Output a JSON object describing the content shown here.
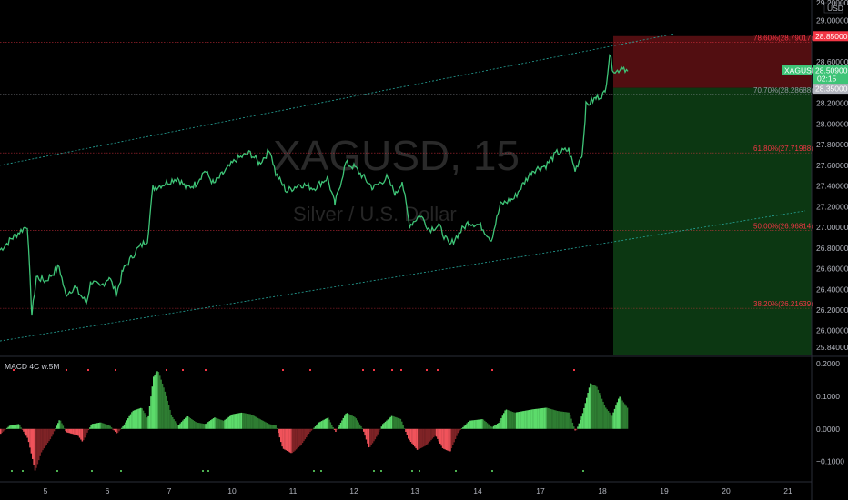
{
  "chart_data": [
    {
      "type": "candlestick",
      "symbol": "XAGUSD",
      "watermark": {
        "symbol": "XAGUSD, 15",
        "description": "Silver / U.S. Dollar"
      },
      "currency": "USD",
      "x_tick_labels": [
        "5",
        "6",
        "7",
        "10",
        "11",
        "12",
        "13",
        "14",
        "17",
        "18",
        "19",
        "20",
        "21"
      ],
      "ylim": [
        25.76,
        29.2
      ],
      "y_tick_values": [
        25.84,
        26.0,
        26.2,
        26.4,
        26.6,
        26.8,
        27.0,
        27.2,
        27.4,
        27.6,
        27.8,
        28.0,
        28.2,
        28.4,
        28.6,
        29.0
      ],
      "y_tick_labels": [
        "25.84000",
        "26.00000",
        "26.20000",
        "26.40000",
        "26.60000",
        "26.80000",
        "27.00000",
        "27.20000",
        "27.40000",
        "27.60000",
        "27.80000",
        "28.00000",
        "28.20000",
        "28.40000",
        "28.60000",
        "29.00000"
      ],
      "price_path": [
        [
          0,
          26.78
        ],
        [
          14,
          26.9
        ],
        [
          30,
          27.02
        ],
        [
          35,
          26.15
        ],
        [
          40,
          26.52
        ],
        [
          50,
          26.48
        ],
        [
          65,
          26.62
        ],
        [
          72,
          26.35
        ],
        [
          82,
          26.42
        ],
        [
          95,
          26.27
        ],
        [
          100,
          26.48
        ],
        [
          110,
          26.42
        ],
        [
          120,
          26.52
        ],
        [
          128,
          26.35
        ],
        [
          135,
          26.58
        ],
        [
          150,
          26.78
        ],
        [
          162,
          26.88
        ],
        [
          168,
          27.38
        ],
        [
          180,
          27.42
        ],
        [
          195,
          27.48
        ],
        [
          205,
          27.38
        ],
        [
          215,
          27.42
        ],
        [
          225,
          27.55
        ],
        [
          235,
          27.42
        ],
        [
          245,
          27.52
        ],
        [
          260,
          27.66
        ],
        [
          275,
          27.72
        ],
        [
          285,
          27.62
        ],
        [
          297,
          27.75
        ],
        [
          303,
          27.52
        ],
        [
          315,
          27.35
        ],
        [
          330,
          27.42
        ],
        [
          345,
          27.38
        ],
        [
          360,
          27.48
        ],
        [
          368,
          27.22
        ],
        [
          380,
          27.62
        ],
        [
          390,
          27.58
        ],
        [
          400,
          27.48
        ],
        [
          410,
          27.38
        ],
        [
          425,
          27.48
        ],
        [
          435,
          27.32
        ],
        [
          442,
          27.45
        ],
        [
          450,
          27.02
        ],
        [
          462,
          27.12
        ],
        [
          472,
          26.98
        ],
        [
          482,
          27.02
        ],
        [
          494,
          26.82
        ],
        [
          505,
          26.95
        ],
        [
          515,
          27.05
        ],
        [
          528,
          27.02
        ],
        [
          540,
          26.88
        ],
        [
          550,
          27.22
        ],
        [
          565,
          27.28
        ],
        [
          575,
          27.42
        ],
        [
          585,
          27.55
        ],
        [
          600,
          27.6
        ],
        [
          612,
          27.72
        ],
        [
          625,
          27.75
        ],
        [
          632,
          27.55
        ],
        [
          640,
          27.72
        ],
        [
          644,
          28.18
        ],
        [
          655,
          28.25
        ],
        [
          665,
          28.3
        ],
        [
          670,
          28.68
        ],
        [
          673,
          28.55
        ],
        [
          677,
          28.5
        ],
        [
          684,
          28.56
        ],
        [
          690,
          28.51
        ]
      ],
      "channel": [
        {
          "from": [
            0,
            27.6
          ],
          "to": [
            740,
            28.87
          ]
        },
        {
          "from": [
            0,
            25.9
          ],
          "to": [
            885,
            27.16
          ]
        }
      ],
      "fibonacci": [
        {
          "label": "78.60%(28.79017)",
          "value": 28.79017,
          "color": "#f23645"
        },
        {
          "label": "70.70%(28.28688)",
          "value": 28.28688,
          "color": "#9598a1"
        },
        {
          "label": "61.80%(27.71988)",
          "value": 27.71988,
          "color": "#f23645"
        },
        {
          "label": "50.00%(26.96814)",
          "value": 26.96814,
          "color": "#f23645"
        },
        {
          "label": "38.20%(26.21639)",
          "value": 26.21639,
          "color": "#f23645"
        }
      ],
      "position": {
        "stop": 28.85,
        "entry": 28.35,
        "target_bottom": 25.76
      },
      "price_tags": {
        "stop": "28.85000",
        "symbol": "XAGUSD",
        "last": "28.50900",
        "countdown": "02:15",
        "entry": "28.35000",
        "top_partial": "29.20000"
      }
    },
    {
      "type": "histogram",
      "title": "MACD 4C w.5M",
      "ylim": [
        -0.14,
        0.2
      ],
      "y_tick_values": [
        0.2,
        0.1,
        0.0,
        -0.1
      ],
      "y_tick_labels": [
        "0.2000",
        "0.1000",
        "0.0000",
        "−0.1000"
      ],
      "colors": {
        "pos_up": "#5cdb6b",
        "pos_down": "#2e7d32",
        "neg_down": "#f0535b",
        "neg_up": "#7f2326",
        "dot_red": "#f23645",
        "dot_green": "#4caf50"
      },
      "wave_points": [
        [
          0,
          -0.015
        ],
        [
          10,
          0.01
        ],
        [
          20,
          0.015
        ],
        [
          30,
          -0.03
        ],
        [
          38,
          -0.13
        ],
        [
          45,
          -0.07
        ],
        [
          55,
          -0.03
        ],
        [
          65,
          0.03
        ],
        [
          72,
          -0.01
        ],
        [
          85,
          -0.02
        ],
        [
          90,
          -0.04
        ],
        [
          100,
          0.015
        ],
        [
          110,
          0.02
        ],
        [
          120,
          0.01
        ],
        [
          128,
          -0.015
        ],
        [
          135,
          0.01
        ],
        [
          145,
          0.055
        ],
        [
          155,
          0.065
        ],
        [
          162,
          0.03
        ],
        [
          168,
          0.16
        ],
        [
          173,
          0.18
        ],
        [
          180,
          0.12
        ],
        [
          188,
          0.04
        ],
        [
          195,
          0.01
        ],
        [
          205,
          0.04
        ],
        [
          215,
          0.02
        ],
        [
          225,
          0.015
        ],
        [
          235,
          0.035
        ],
        [
          245,
          0.025
        ],
        [
          255,
          0.045
        ],
        [
          265,
          0.05
        ],
        [
          275,
          0.045
        ],
        [
          285,
          0.03
        ],
        [
          295,
          0.015
        ],
        [
          303,
          0.01
        ],
        [
          310,
          -0.06
        ],
        [
          320,
          -0.075
        ],
        [
          330,
          -0.05
        ],
        [
          340,
          -0.01
        ],
        [
          350,
          0.02
        ],
        [
          360,
          0.035
        ],
        [
          368,
          -0.01
        ],
        [
          380,
          0.05
        ],
        [
          390,
          0.035
        ],
        [
          398,
          0.0
        ],
        [
          405,
          -0.06
        ],
        [
          412,
          -0.03
        ],
        [
          420,
          0.015
        ],
        [
          430,
          0.04
        ],
        [
          440,
          0.03
        ],
        [
          448,
          -0.03
        ],
        [
          458,
          -0.065
        ],
        [
          468,
          -0.05
        ],
        [
          478,
          -0.02
        ],
        [
          486,
          -0.06
        ],
        [
          494,
          -0.07
        ],
        [
          503,
          -0.01
        ],
        [
          515,
          0.025
        ],
        [
          530,
          0.03
        ],
        [
          540,
          0.005
        ],
        [
          548,
          0.02
        ],
        [
          555,
          0.06
        ],
        [
          565,
          0.05
        ],
        [
          575,
          0.055
        ],
        [
          585,
          0.06
        ],
        [
          600,
          0.065
        ],
        [
          612,
          0.055
        ],
        [
          625,
          0.05
        ],
        [
          632,
          -0.01
        ],
        [
          640,
          0.05
        ],
        [
          648,
          0.14
        ],
        [
          655,
          0.13
        ],
        [
          665,
          0.065
        ],
        [
          672,
          0.04
        ],
        [
          680,
          0.1
        ],
        [
          690,
          0.06
        ]
      ],
      "dots_red_top": [
        14,
        72,
        96,
        126,
        182,
        200,
        225,
        310,
        340,
        398,
        410,
        430,
        440,
        468,
        480,
        540,
        630
      ],
      "dots_green_bottom": [
        12,
        24,
        62,
        100,
        132,
        222,
        228,
        344,
        352,
        410,
        418,
        452,
        460,
        500,
        540,
        640
      ]
    }
  ]
}
